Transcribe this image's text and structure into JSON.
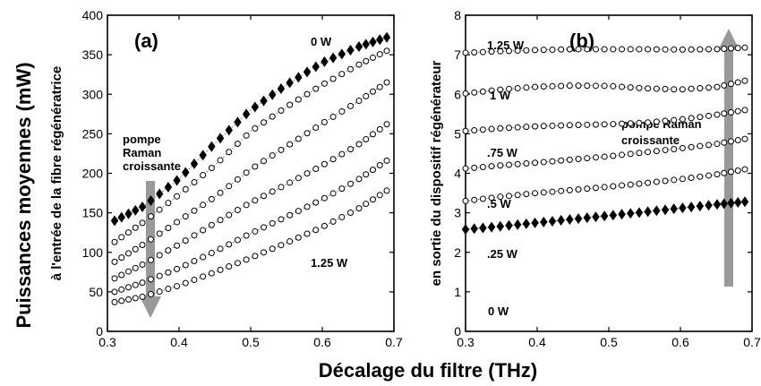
{
  "figure": {
    "ylabel_main": "Puissances moyennes (mW)",
    "xlabel_main": "Décalage du filtre (THz)"
  },
  "chart_data": [
    {
      "type": "scatter",
      "panel_label": "(a)",
      "ylabel": "à l'entrée de la fibre régénératrice",
      "xlim": [
        0.3,
        0.7
      ],
      "ylim": [
        0,
        400
      ],
      "xticks": [
        "0.3",
        "0.4",
        "0.5",
        "0.6",
        "0.7"
      ],
      "yticks": [
        "0",
        "50",
        "100",
        "150",
        "200",
        "250",
        "300",
        "350",
        "400"
      ],
      "arrow_label": [
        "pompe",
        "Raman",
        "croissante"
      ],
      "arrow_direction": "down",
      "series": [
        {
          "name": "0 W",
          "marker": "diamond",
          "x": [
            0.31,
            0.35,
            0.4,
            0.45,
            0.5,
            0.55,
            0.6,
            0.65,
            0.69
          ],
          "y": [
            140,
            158,
            193,
            238,
            280,
            312,
            340,
            360,
            372
          ]
        },
        {
          "name": "",
          "marker": "circle",
          "x": [
            0.31,
            0.35,
            0.4,
            0.45,
            0.5,
            0.55,
            0.6,
            0.65,
            0.69
          ],
          "y": [
            113,
            138,
            173,
            210,
            253,
            284,
            312,
            337,
            355
          ]
        },
        {
          "name": "",
          "marker": "circle",
          "x": [
            0.31,
            0.35,
            0.4,
            0.45,
            0.5,
            0.55,
            0.6,
            0.65,
            0.69
          ],
          "y": [
            88,
            110,
            140,
            170,
            205,
            234,
            263,
            291,
            315
          ]
        },
        {
          "name": "",
          "marker": "circle",
          "x": [
            0.31,
            0.35,
            0.4,
            0.45,
            0.5,
            0.55,
            0.6,
            0.65,
            0.69
          ],
          "y": [
            67,
            85,
            110,
            137,
            163,
            186,
            210,
            236,
            262
          ]
        },
        {
          "name": "",
          "marker": "circle",
          "x": [
            0.31,
            0.35,
            0.4,
            0.45,
            0.5,
            0.55,
            0.6,
            0.65,
            0.69
          ],
          "y": [
            50,
            62,
            80,
            101,
            124,
            145,
            167,
            192,
            216
          ]
        },
        {
          "name": "1.25 W",
          "marker": "circle",
          "x": [
            0.31,
            0.35,
            0.4,
            0.45,
            0.5,
            0.55,
            0.6,
            0.65,
            0.69
          ],
          "y": [
            37,
            44,
            58,
            75,
            93,
            112,
            132,
            155,
            178
          ]
        }
      ]
    },
    {
      "type": "scatter",
      "panel_label": "(b)",
      "ylabel": "en sortie du dispositif régénérateur",
      "xlim": [
        0.3,
        0.7
      ],
      "ylim": [
        0,
        8
      ],
      "xticks": [
        "0.3",
        "0.4",
        "0.5",
        "0.6",
        "0.7"
      ],
      "yticks": [
        "0",
        "1",
        "2",
        "3",
        "4",
        "5",
        "6",
        "7",
        "8"
      ],
      "arrow_label": [
        "pompe Raman",
        "croissante"
      ],
      "arrow_direction": "up",
      "series": [
        {
          "name": "0 W",
          "marker": "diamond",
          "x": [
            0.3,
            0.35,
            0.4,
            0.45,
            0.5,
            0.55,
            0.6,
            0.65,
            0.69
          ],
          "y": [
            2.58,
            2.66,
            2.75,
            2.84,
            2.93,
            3.02,
            3.12,
            3.21,
            3.28
          ]
        },
        {
          "name": ".25 W",
          "marker": "circle",
          "x": [
            0.3,
            0.35,
            0.4,
            0.45,
            0.5,
            0.55,
            0.6,
            0.65,
            0.69
          ],
          "y": [
            3.3,
            3.41,
            3.5,
            3.58,
            3.66,
            3.75,
            3.85,
            3.97,
            4.1
          ]
        },
        {
          "name": ".5 W",
          "marker": "circle",
          "x": [
            0.3,
            0.35,
            0.4,
            0.45,
            0.5,
            0.55,
            0.6,
            0.65,
            0.69
          ],
          "y": [
            4.12,
            4.2,
            4.27,
            4.35,
            4.43,
            4.53,
            4.63,
            4.74,
            4.87
          ]
        },
        {
          "name": ".75 W",
          "marker": "circle",
          "x": [
            0.3,
            0.35,
            0.4,
            0.45,
            0.5,
            0.55,
            0.6,
            0.65,
            0.69
          ],
          "y": [
            5.07,
            5.14,
            5.19,
            5.22,
            5.24,
            5.28,
            5.36,
            5.48,
            5.6
          ]
        },
        {
          "name": "1 W",
          "marker": "circle",
          "x": [
            0.3,
            0.35,
            0.4,
            0.45,
            0.5,
            0.55,
            0.6,
            0.65,
            0.69
          ],
          "y": [
            6.02,
            6.12,
            6.19,
            6.22,
            6.21,
            6.15,
            6.12,
            6.18,
            6.34
          ]
        },
        {
          "name": "1.25 W",
          "marker": "circle",
          "x": [
            0.3,
            0.35,
            0.4,
            0.45,
            0.5,
            0.55,
            0.6,
            0.65,
            0.69
          ],
          "y": [
            7.05,
            7.09,
            7.12,
            7.14,
            7.14,
            7.14,
            7.13,
            7.14,
            7.18
          ]
        }
      ]
    }
  ]
}
